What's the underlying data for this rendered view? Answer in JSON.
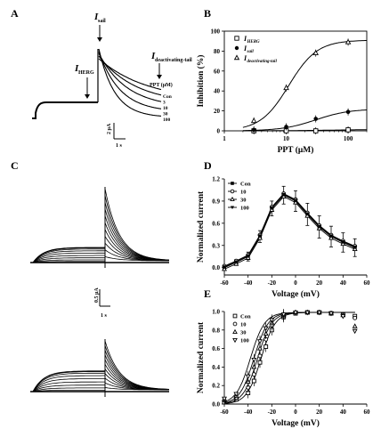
{
  "panels": {
    "A": {
      "letter": "A",
      "i_sail": "I",
      "i_sail_sub": "sail",
      "i_herg": "I",
      "i_herg_sub": "HERG",
      "i_deact": "I",
      "i_deact_sub": "deactivating-tail",
      "ppt_label": "PPT (μM)",
      "conc_labels": [
        "Con",
        "3",
        "10",
        "30",
        "100"
      ],
      "scale_y": "2 μA",
      "scale_x": "1 s"
    },
    "B": {
      "letter": "B",
      "chart_data": {
        "type": "scatter",
        "xlabel": "PPT (μM)",
        "ylabel": "Inhibition (%)",
        "xscale": "log",
        "xlim": [
          1,
          200
        ],
        "ylim": [
          0,
          100
        ],
        "xticks": [
          1,
          10,
          100
        ],
        "yticks": [
          0,
          20,
          40,
          60,
          80,
          100
        ],
        "legend_position": "top-left",
        "series": [
          {
            "name": "I",
            "sub": "HERG",
            "marker": "square-open",
            "x": [
              3,
              10,
              30,
              100
            ],
            "y": [
              0,
              0,
              0,
              1
            ]
          },
          {
            "name": "I",
            "sub": "sail",
            "marker": "circle-filled",
            "x": [
              3,
              10,
              30,
              100
            ],
            "y": [
              1,
              4,
              12,
              19
            ]
          },
          {
            "name": "I",
            "sub": "deactivating-tail",
            "marker": "triangle-open",
            "x": [
              3,
              10,
              30,
              100
            ],
            "y": [
              10,
              43,
              78,
              89
            ]
          }
        ]
      }
    },
    "C": {
      "letter": "C",
      "scale_y": "0.5 μA",
      "scale_x": "1 s"
    },
    "D": {
      "letter": "D",
      "chart_data": {
        "type": "line",
        "xlabel": "Voltage (mV)",
        "ylabel": "Normalized current",
        "xlim": [
          -60,
          60
        ],
        "ylim": [
          -0.1,
          1.2
        ],
        "xticks": [
          -60,
          -40,
          -20,
          0,
          20,
          40,
          60
        ],
        "yticks": [
          0.0,
          0.3,
          0.6,
          0.9,
          1.2
        ],
        "legend_position": "top-left",
        "legend": [
          "Con",
          "10",
          "30",
          "100"
        ],
        "x": [
          -60,
          -50,
          -40,
          -30,
          -20,
          -10,
          0,
          10,
          20,
          30,
          40,
          50
        ],
        "y": [
          0.0,
          0.07,
          0.15,
          0.42,
          0.8,
          0.98,
          0.9,
          0.72,
          0.55,
          0.42,
          0.34,
          0.27
        ],
        "err": [
          0.02,
          0.04,
          0.06,
          0.08,
          0.1,
          0.12,
          0.14,
          0.15,
          0.15,
          0.14,
          0.13,
          0.12
        ]
      }
    },
    "E": {
      "letter": "E",
      "chart_data": {
        "type": "line",
        "xlabel": "Voltage (mV)",
        "ylabel": "Normalized current",
        "xlim": [
          -60,
          60
        ],
        "ylim": [
          0.0,
          1.0
        ],
        "xticks": [
          -60,
          -40,
          -20,
          0,
          20,
          40,
          60
        ],
        "yticks": [
          0.0,
          0.2,
          0.4,
          0.6,
          0.8,
          1.0
        ],
        "legend_position": "top-left",
        "legend": [
          "Con",
          "10",
          "30",
          "100"
        ],
        "x": [
          -60,
          -50,
          -40,
          -35,
          -30,
          -25,
          -20,
          -10,
          0,
          10,
          20,
          30,
          40,
          50
        ],
        "series": [
          {
            "name": "Con",
            "marker": "square-open",
            "y": [
              0.02,
              0.05,
              0.12,
              0.25,
              0.45,
              0.62,
              0.8,
              0.94,
              0.98,
              0.99,
              0.99,
              0.98,
              0.97,
              0.95
            ]
          },
          {
            "name": "10",
            "marker": "circle-open",
            "y": [
              0.04,
              0.07,
              0.18,
              0.32,
              0.52,
              0.7,
              0.85,
              0.95,
              0.99,
              0.99,
              0.99,
              0.98,
              0.97,
              0.93
            ]
          },
          {
            "name": "30",
            "marker": "triangle-open",
            "y": [
              0.05,
              0.09,
              0.24,
              0.4,
              0.6,
              0.76,
              0.88,
              0.96,
              0.99,
              0.99,
              0.99,
              0.98,
              0.96,
              0.84
            ]
          },
          {
            "name": "100",
            "marker": "triangle-down-open",
            "y": [
              0.06,
              0.11,
              0.3,
              0.48,
              0.68,
              0.82,
              0.91,
              0.97,
              0.99,
              0.99,
              0.99,
              0.98,
              0.95,
              0.79
            ]
          }
        ]
      }
    }
  }
}
